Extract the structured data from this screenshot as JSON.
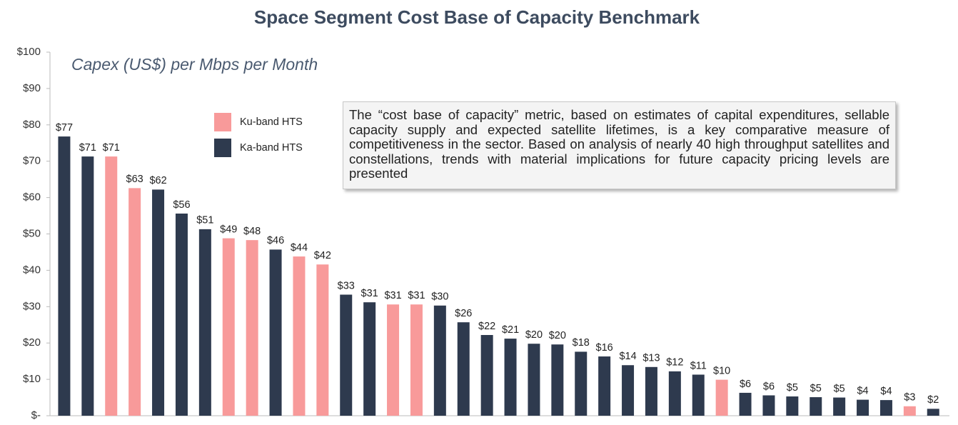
{
  "chart_data": {
    "type": "bar",
    "title": "Space Segment Cost Base of Capacity Benchmark",
    "subtitle": "Capex (US$) per Mbps per Month",
    "annotation": "The “cost base of capacity” metric, based on estimates of capital expenditures, sellable capacity supply and expected satellite lifetimes, is a key comparative measure of competitiveness in the sector. Based on analysis of nearly 40 high throughput satellites and constellations, trends with material implications for future capacity pricing levels are presented",
    "categories": [
      null,
      null,
      null,
      null,
      null,
      null,
      null,
      null,
      null,
      null,
      null,
      null,
      null,
      null,
      null,
      null,
      null,
      null,
      null,
      null,
      null,
      null,
      null,
      null,
      null,
      null,
      null,
      null,
      null,
      null,
      null,
      null,
      null,
      null,
      null,
      null,
      null,
      null
    ],
    "series": [
      {
        "name": "Ku-band HTS",
        "color": "#f89a9a",
        "values": [
          null,
          null,
          71.3,
          62.6,
          null,
          null,
          null,
          48.8,
          48.3,
          null,
          43.8,
          41.6,
          null,
          null,
          30.6,
          30.6,
          null,
          null,
          null,
          null,
          null,
          null,
          null,
          null,
          null,
          null,
          null,
          null,
          9.9,
          null,
          null,
          null,
          null,
          null,
          null,
          null,
          2.6,
          null
        ],
        "value_labels": [
          null,
          null,
          "$71",
          "$63",
          null,
          null,
          null,
          "$49",
          "$48",
          null,
          "$44",
          "$42",
          null,
          null,
          "$31",
          "$31",
          null,
          null,
          null,
          null,
          null,
          null,
          null,
          null,
          null,
          null,
          null,
          null,
          "$10",
          null,
          null,
          null,
          null,
          null,
          null,
          null,
          "$3",
          null
        ]
      },
      {
        "name": "Ka-band HTS",
        "color": "#2e3a4e",
        "values": [
          76.8,
          71.3,
          null,
          null,
          62.2,
          55.6,
          51.3,
          null,
          null,
          45.7,
          null,
          null,
          33.3,
          31.2,
          null,
          null,
          30.3,
          25.7,
          22.2,
          21.2,
          19.8,
          19.6,
          17.6,
          16.3,
          13.9,
          13.4,
          12.2,
          11.3,
          null,
          6.3,
          5.6,
          5.3,
          5.1,
          5.0,
          4.4,
          4.3,
          null,
          1.9
        ],
        "value_labels": [
          "$77",
          "$71",
          null,
          null,
          "$62",
          "$56",
          "$51",
          null,
          null,
          "$46",
          null,
          null,
          "$33",
          "$31",
          null,
          null,
          "$30",
          "$26",
          "$22",
          "$21",
          "$20",
          "$20",
          "$18",
          "$16",
          "$14",
          "$13",
          "$12",
          "$11",
          null,
          "$6",
          "$6",
          "$5",
          "$5",
          "$5",
          "$4",
          "$4",
          null,
          "$2"
        ]
      }
    ],
    "ylim": [
      0,
      100
    ],
    "yticks": [
      {
        "value": 0,
        "label": "$-"
      },
      {
        "value": 10,
        "label": "$10"
      },
      {
        "value": 20,
        "label": "$20"
      },
      {
        "value": 30,
        "label": "$30"
      },
      {
        "value": 40,
        "label": "$40"
      },
      {
        "value": 50,
        "label": "$50"
      },
      {
        "value": 60,
        "label": "$60"
      },
      {
        "value": 70,
        "label": "$70"
      },
      {
        "value": 80,
        "label": "$80"
      },
      {
        "value": 90,
        "label": "$90"
      },
      {
        "value": 100,
        "label": "$100"
      }
    ],
    "grid": false
  }
}
